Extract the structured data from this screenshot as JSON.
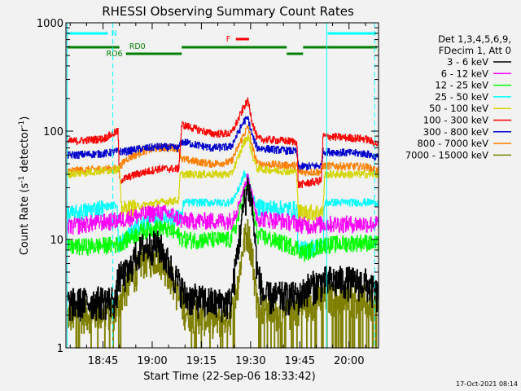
{
  "chart_data": {
    "type": "line",
    "title": "RHESSI Observing Summary Count Rates",
    "xlabel": "Start Time (22-Sep-06 18:33:42)",
    "ylabel_main": "Count Rate (s",
    "ylabel_sup1": "-1",
    "ylabel_mid": " detector",
    "ylabel_sup2": "-1",
    "ylabel_end": ")",
    "yscale": "log",
    "ylim": [
      1,
      1000
    ],
    "xlim_minutes": [
      33.7,
      129.0
    ],
    "x_ticks": [
      {
        "minutes": 45,
        "label": "18:45"
      },
      {
        "minutes": 60,
        "label": "19:00"
      },
      {
        "minutes": 75,
        "label": "19:15"
      },
      {
        "minutes": 90,
        "label": "19:30"
      },
      {
        "minutes": 105,
        "label": "19:45"
      },
      {
        "minutes": 120,
        "label": "20:00"
      }
    ],
    "y_ticks": [
      {
        "value": 1,
        "label": "1"
      },
      {
        "value": 10,
        "label": "10"
      },
      {
        "value": 100,
        "label": "100"
      },
      {
        "value": 1000,
        "label": "1000"
      }
    ],
    "legend_header": [
      "Det 1,3,4,5,6,9,",
      "FDecim 1, Att 0"
    ],
    "footer_date": "17-Oct-2021 08:14",
    "series": [
      {
        "name": "3 - 6 keV",
        "color": "#000000",
        "keys": [
          [
            34,
            2.6
          ],
          [
            49,
            2.8
          ],
          [
            49.5,
            4.5
          ],
          [
            53,
            5.0
          ],
          [
            54,
            6.5
          ],
          [
            57,
            8.5
          ],
          [
            62,
            9.0
          ],
          [
            65,
            6.0
          ],
          [
            68,
            4.0
          ],
          [
            70,
            3.0
          ],
          [
            80,
            2.6
          ],
          [
            84,
            2.7
          ],
          [
            86,
            8
          ],
          [
            88,
            22
          ],
          [
            89.2,
            32
          ],
          [
            90.5,
            20
          ],
          [
            92,
            5
          ],
          [
            94,
            3.0
          ],
          [
            105,
            3.0
          ],
          [
            107,
            3.6
          ],
          [
            113,
            4.2
          ],
          [
            118,
            4.2
          ],
          [
            125,
            4.0
          ],
          [
            129,
            3.0
          ]
        ]
      },
      {
        "name": "6 - 12 keV",
        "color": "#ff00ff",
        "keys": [
          [
            34,
            13
          ],
          [
            40,
            14
          ],
          [
            49,
            15
          ],
          [
            57,
            17
          ],
          [
            62,
            18
          ],
          [
            66,
            17
          ],
          [
            69,
            15
          ],
          [
            84,
            15
          ],
          [
            86,
            20
          ],
          [
            88,
            30
          ],
          [
            89.2,
            40
          ],
          [
            90.5,
            25
          ],
          [
            92,
            16
          ],
          [
            103,
            14.5
          ],
          [
            107,
            13.5
          ],
          [
            112,
            14
          ],
          [
            125,
            14
          ],
          [
            129,
            14
          ]
        ]
      },
      {
        "name": "12 - 25 keV",
        "color": "#00ff00",
        "keys": [
          [
            34,
            8.5
          ],
          [
            49,
            9
          ],
          [
            52,
            10
          ],
          [
            57,
            12
          ],
          [
            62,
            13
          ],
          [
            66,
            12
          ],
          [
            70,
            10
          ],
          [
            84,
            10
          ],
          [
            86,
            15
          ],
          [
            88,
            28
          ],
          [
            89.2,
            35
          ],
          [
            90.5,
            20
          ],
          [
            92,
            11
          ],
          [
            104,
            8.5
          ],
          [
            106,
            7.5
          ],
          [
            112,
            9
          ],
          [
            125,
            9.5
          ],
          [
            129,
            9
          ]
        ]
      },
      {
        "name": "25 - 50 keV",
        "color": "#00ffff",
        "keys": [
          [
            34,
            17
          ],
          [
            45,
            20
          ],
          [
            49.3,
            21
          ],
          [
            49.7,
            9
          ],
          [
            55,
            13
          ],
          [
            62,
            16
          ],
          [
            69,
            16
          ],
          [
            69.5,
            22
          ],
          [
            78,
            22
          ],
          [
            84,
            22
          ],
          [
            86,
            28
          ],
          [
            88,
            40
          ],
          [
            89.2,
            38
          ],
          [
            90.5,
            25
          ],
          [
            92,
            20
          ],
          [
            104,
            19
          ],
          [
            104.5,
            8
          ],
          [
            112,
            9
          ],
          [
            112.5,
            22
          ],
          [
            125,
            22
          ],
          [
            129,
            22
          ]
        ]
      },
      {
        "name": "50 - 100 keV",
        "color": "#d4d400",
        "keys": [
          [
            34,
            40
          ],
          [
            48,
            44
          ],
          [
            50,
            45
          ],
          [
            50.5,
            19
          ],
          [
            55,
            20
          ],
          [
            62,
            22
          ],
          [
            68,
            23
          ],
          [
            68.5,
            40
          ],
          [
            78,
            40
          ],
          [
            84,
            40
          ],
          [
            86,
            55
          ],
          [
            88,
            80
          ],
          [
            89.2,
            90
          ],
          [
            90.5,
            60
          ],
          [
            92,
            45
          ],
          [
            104,
            42
          ],
          [
            104.5,
            18
          ],
          [
            112,
            18
          ],
          [
            112.5,
            40
          ],
          [
            125,
            40
          ],
          [
            129,
            40
          ]
        ]
      },
      {
        "name": "100 - 300 keV",
        "color": "#ff0000",
        "keys": [
          [
            34,
            80
          ],
          [
            45,
            85
          ],
          [
            49.5,
            100
          ],
          [
            50,
            35
          ],
          [
            55,
            40
          ],
          [
            62,
            45
          ],
          [
            68,
            45
          ],
          [
            69,
            115
          ],
          [
            78,
            95
          ],
          [
            84,
            95
          ],
          [
            86,
            125
          ],
          [
            88,
            170
          ],
          [
            89.2,
            190
          ],
          [
            90.5,
            120
          ],
          [
            92,
            85
          ],
          [
            104,
            80
          ],
          [
            104.5,
            32
          ],
          [
            111.5,
            35
          ],
          [
            112,
            90
          ],
          [
            125,
            85
          ],
          [
            129,
            75
          ]
        ]
      },
      {
        "name": "300 - 800 keV",
        "color": "#0000cc",
        "keys": [
          [
            34,
            60
          ],
          [
            45,
            62
          ],
          [
            49.5,
            65
          ],
          [
            52,
            65
          ],
          [
            55,
            68
          ],
          [
            62,
            72
          ],
          [
            68,
            70
          ],
          [
            69,
            80
          ],
          [
            78,
            70
          ],
          [
            84,
            72
          ],
          [
            86,
            95
          ],
          [
            88,
            125
          ],
          [
            89.2,
            130
          ],
          [
            90.5,
            90
          ],
          [
            92,
            70
          ],
          [
            104,
            65
          ],
          [
            104.5,
            47
          ],
          [
            111.5,
            48
          ],
          [
            112,
            65
          ],
          [
            125,
            62
          ],
          [
            129,
            57
          ]
        ]
      },
      {
        "name": "800 - 7000 keV",
        "color": "#ff8000",
        "keys": [
          [
            34,
            43
          ],
          [
            45,
            45
          ],
          [
            49.5,
            45
          ],
          [
            52,
            55
          ],
          [
            57,
            65
          ],
          [
            62,
            70
          ],
          [
            68,
            70
          ],
          [
            69,
            55
          ],
          [
            78,
            50
          ],
          [
            84,
            52
          ],
          [
            86,
            70
          ],
          [
            88,
            95
          ],
          [
            89.2,
            110
          ],
          [
            90.5,
            70
          ],
          [
            92,
            50
          ],
          [
            104,
            48
          ],
          [
            104.5,
            42
          ],
          [
            111.5,
            42
          ],
          [
            112,
            48
          ],
          [
            125,
            47
          ],
          [
            129,
            43
          ]
        ]
      },
      {
        "name": "7000 - 15000 keV",
        "color": "#808000",
        "keys": [
          [
            34,
            2.0
          ],
          [
            49,
            2.2
          ],
          [
            50,
            2.8
          ],
          [
            53,
            4.0
          ],
          [
            57,
            6.5
          ],
          [
            62,
            7.0
          ],
          [
            65,
            5.0
          ],
          [
            68,
            3.0
          ],
          [
            70,
            2.2
          ],
          [
            80,
            1.8
          ],
          [
            84,
            2.0
          ],
          [
            86,
            4
          ],
          [
            88,
            10
          ],
          [
            89.2,
            12
          ],
          [
            90.5,
            7
          ],
          [
            92,
            2.5
          ],
          [
            100,
            2.0
          ],
          [
            105,
            2.5
          ],
          [
            113,
            3.0
          ],
          [
            125,
            2.8
          ],
          [
            129,
            2.2
          ]
        ]
      }
    ],
    "annotations": {
      "N_label": "N",
      "RD0_label": "RD0",
      "RD6_label": "RD6",
      "F_label": "F",
      "N_color": "#00ffff",
      "RD_color": "#008000",
      "F_color": "#ff0000",
      "N_segments_minutes": [
        [
          34.0,
          46.5
        ],
        [
          113.5,
          128.3
        ]
      ],
      "RD_high_segments_minutes": [
        [
          34.0,
          50.0
        ],
        [
          69.0,
          101.0
        ],
        [
          106.0,
          128.5
        ]
      ],
      "RD_low_segments_minutes": [
        [
          52.0,
          69.0
        ],
        [
          101.0,
          106.0
        ]
      ],
      "F_segment_minutes": [
        85.5,
        89.5
      ],
      "night_solid_minutes": [
        34.1,
        113.2
      ],
      "night_dashed_minutes": [
        48.0,
        127.8
      ]
    }
  }
}
